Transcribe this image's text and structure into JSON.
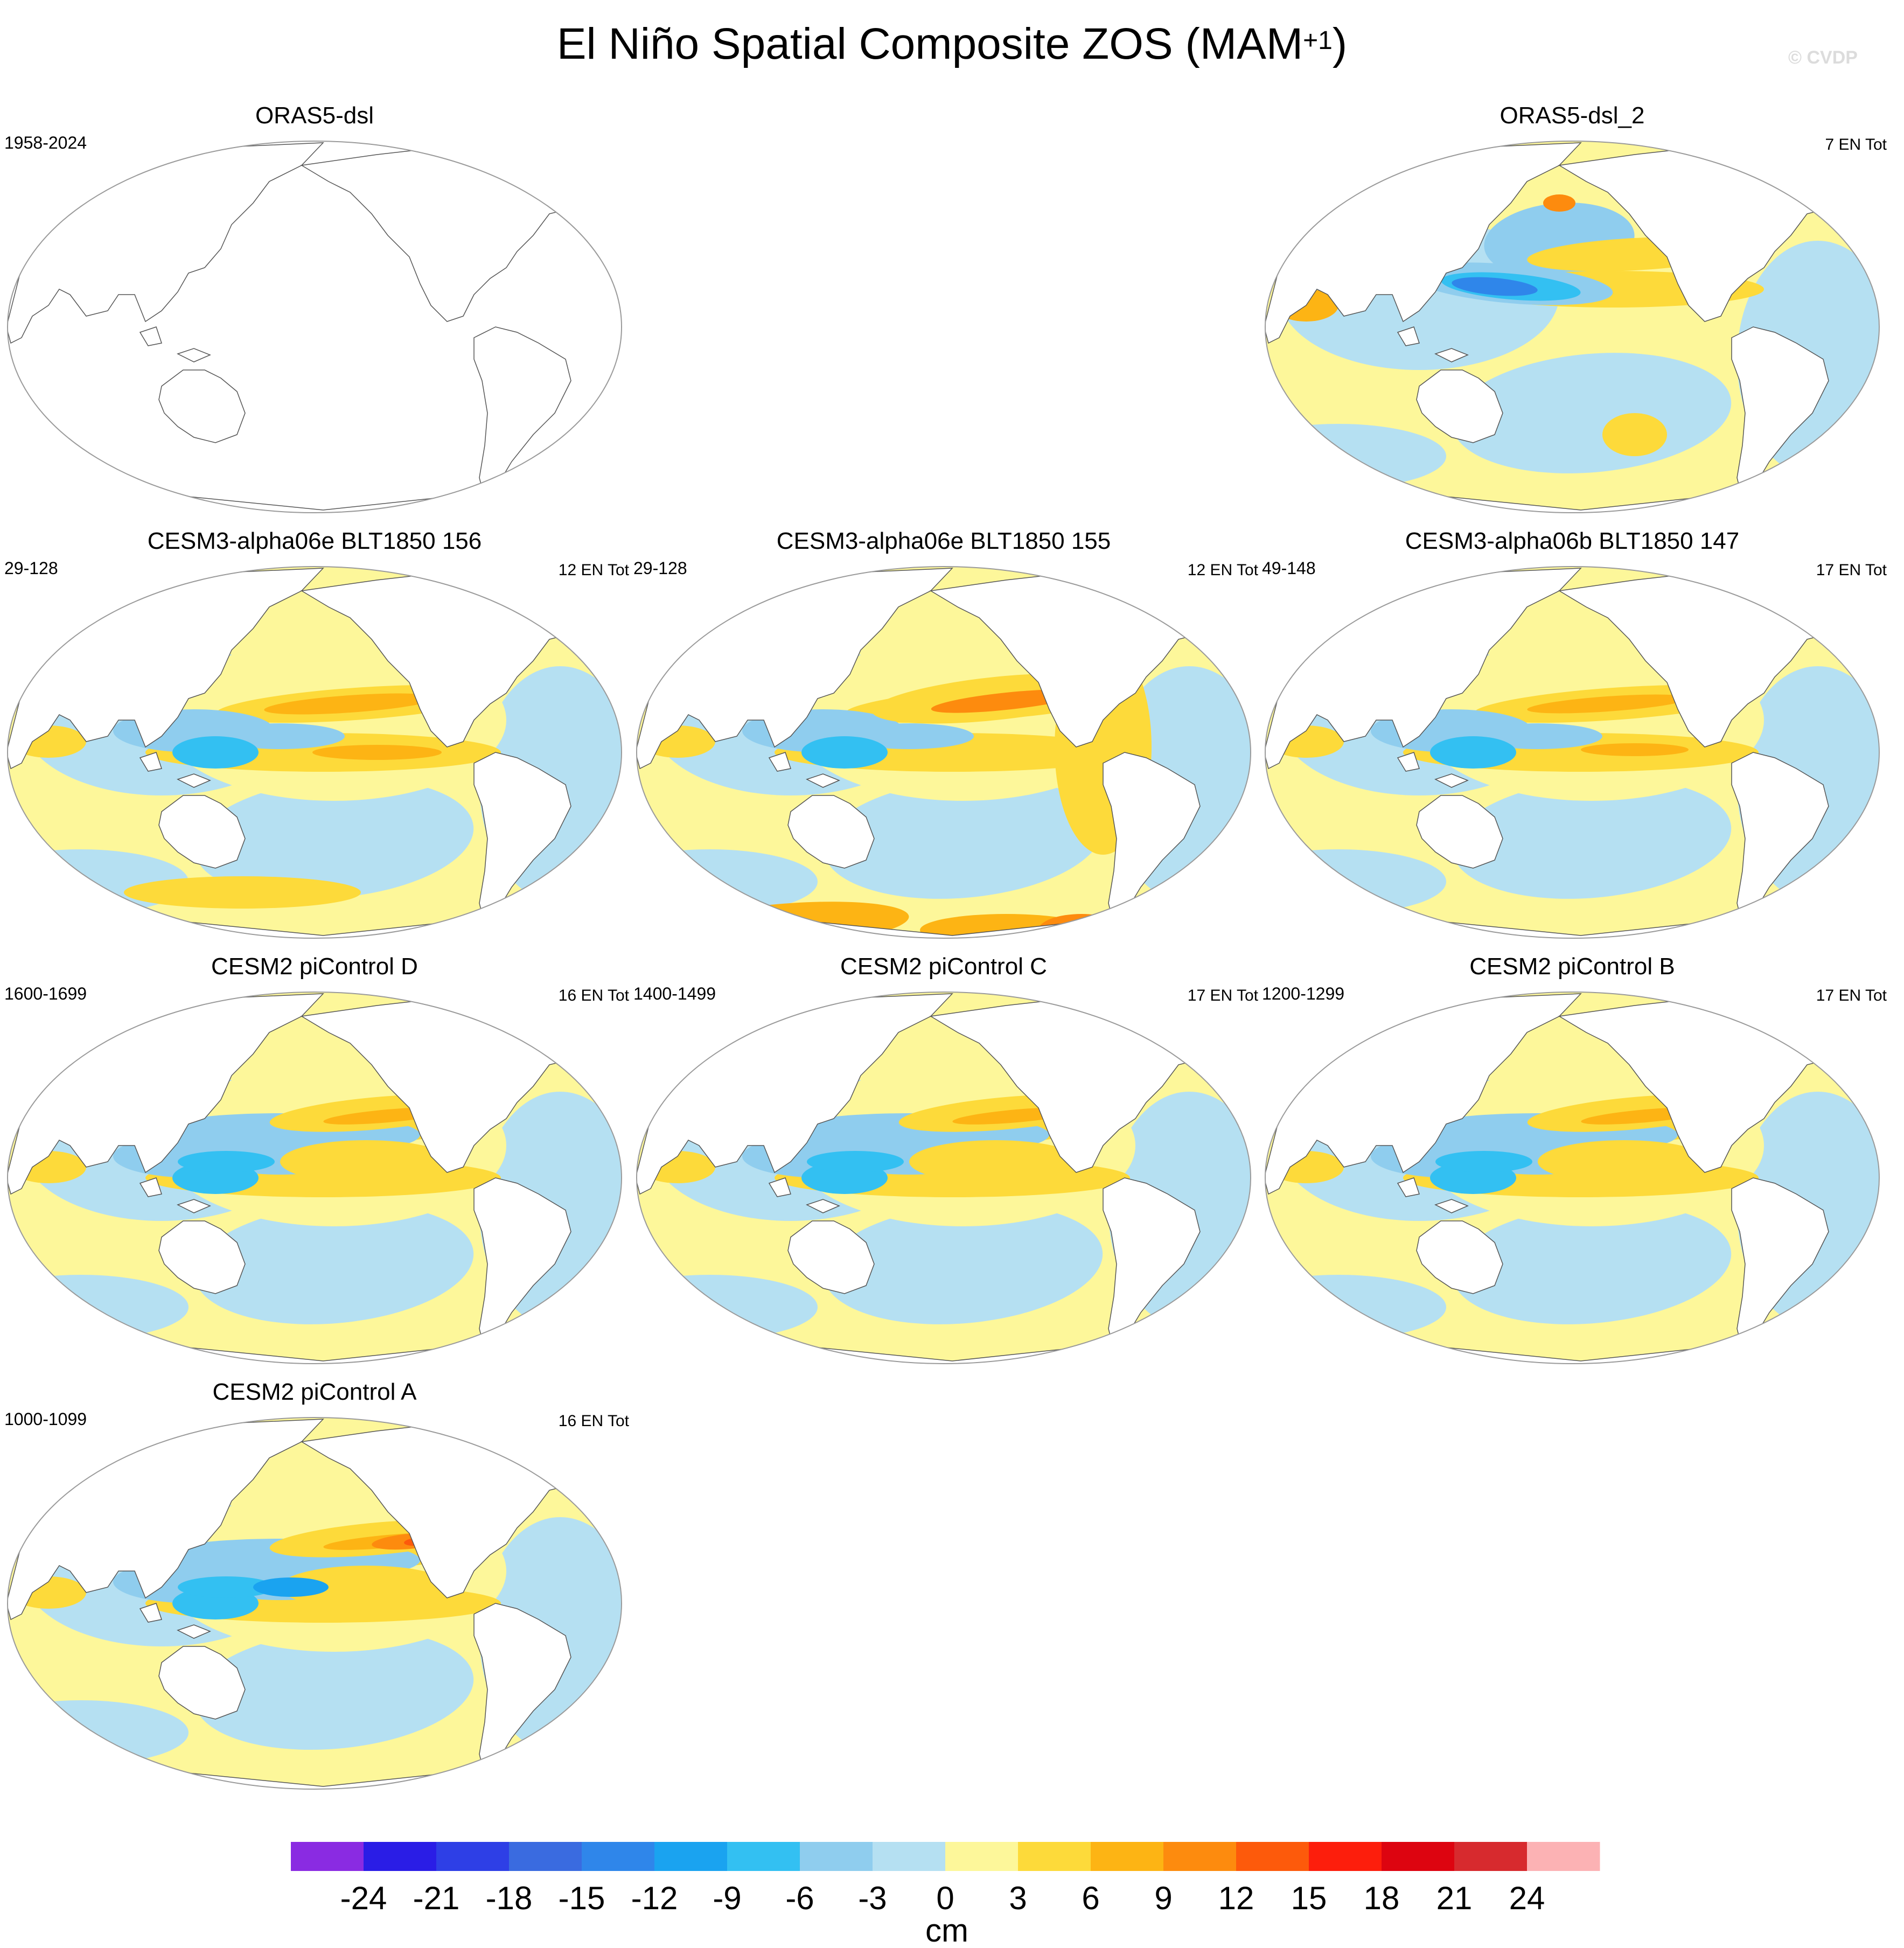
{
  "figure": {
    "title_main": "El Niño Spatial Composite ZOS (MAM",
    "title_sup": "+1",
    "title_end": ")",
    "watermark": "© CVDP"
  },
  "panels": [
    {
      "id": "p0",
      "title": "ORAS5-dsl",
      "left_note": "1958-2024",
      "right_note": "",
      "pattern": "empty"
    },
    {
      "id": "p1",
      "title": "ORAS5-dsl_2",
      "left_note": "",
      "right_note": "7 EN Tot",
      "pattern": "obs"
    },
    {
      "id": "p2",
      "title": "CESM3-alpha06e BLT1850 156",
      "left_note": "29-128",
      "right_note": "12 EN Tot",
      "pattern": "model_e156"
    },
    {
      "id": "p3",
      "title": "CESM3-alpha06e BLT1850 155",
      "left_note": "29-128",
      "right_note": "12 EN Tot",
      "pattern": "model_e155"
    },
    {
      "id": "p4",
      "title": "CESM3-alpha06b BLT1850 147",
      "left_note": "49-148",
      "right_note": "17 EN Tot",
      "pattern": "model_b147"
    },
    {
      "id": "p5",
      "title": "CESM2 piControl D",
      "left_note": "1600-1699",
      "right_note": "16 EN Tot",
      "pattern": "cesm2"
    },
    {
      "id": "p6",
      "title": "CESM2 piControl C",
      "left_note": "1400-1499",
      "right_note": "17 EN Tot",
      "pattern": "cesm2"
    },
    {
      "id": "p7",
      "title": "CESM2 piControl B",
      "left_note": "1200-1299",
      "right_note": "17 EN Tot",
      "pattern": "cesm2"
    },
    {
      "id": "p8",
      "title": "CESM2 piControl A",
      "left_note": "1000-1099",
      "right_note": "16 EN Tot",
      "pattern": "cesm2_strong"
    }
  ],
  "chart_data": {
    "type": "heatmap",
    "title": "El Niño Spatial Composite ZOS (MAM+1)",
    "projection": "Robinson, Pacific-centred",
    "variable": "ZOS composite",
    "units": "cm",
    "colorbar": {
      "label": "cm",
      "levels": [
        -24,
        -21,
        -18,
        -15,
        -12,
        -9,
        -6,
        -3,
        0,
        3,
        6,
        9,
        12,
        15,
        18,
        21,
        24
      ],
      "tick_labels": [
        "-24",
        "-21",
        "-18",
        "-15",
        "-12",
        "-9",
        "-6",
        "-3",
        "0",
        "3",
        "6",
        "9",
        "12",
        "15",
        "18",
        "21",
        "24"
      ],
      "colors": [
        "#8a2be2",
        "#2a1de6",
        "#2e3fe6",
        "#3a6be0",
        "#2f86ea",
        "#1aa3f0",
        "#33c0f2",
        "#8fcdee",
        "#b5e0f2",
        "#fdf79a",
        "#fdda3a",
        "#fdb414",
        "#fd8b0e",
        "#fd5a0b",
        "#fd1e0c",
        "#dd0410",
        "#d72a2e",
        "#fcb2b4"
      ]
    },
    "panels": [
      {
        "title": "ORAS5-dsl",
        "period": "1958-2024",
        "count": "",
        "status": "no data (blank map)"
      },
      {
        "title": "ORAS5-dsl_2",
        "period": "",
        "count": "7 EN Tot"
      },
      {
        "title": "CESM3-alpha06e BLT1850 156",
        "period": "29-128",
        "count": "12 EN Tot"
      },
      {
        "title": "CESM3-alpha06e BLT1850 155",
        "period": "29-128",
        "count": "12 EN Tot"
      },
      {
        "title": "CESM3-alpha06b BLT1850 147",
        "period": "49-148",
        "count": "17 EN Tot"
      },
      {
        "title": "CESM2 piControl D",
        "period": "1600-1699",
        "count": "16 EN Tot"
      },
      {
        "title": "CESM2 piControl C",
        "period": "1400-1499",
        "count": "17 EN Tot"
      },
      {
        "title": "CESM2 piControl B",
        "period": "1200-1299",
        "count": "17 EN Tot"
      },
      {
        "title": "CESM2 piControl A",
        "period": "1000-1099",
        "count": "16 EN Tot"
      }
    ]
  }
}
